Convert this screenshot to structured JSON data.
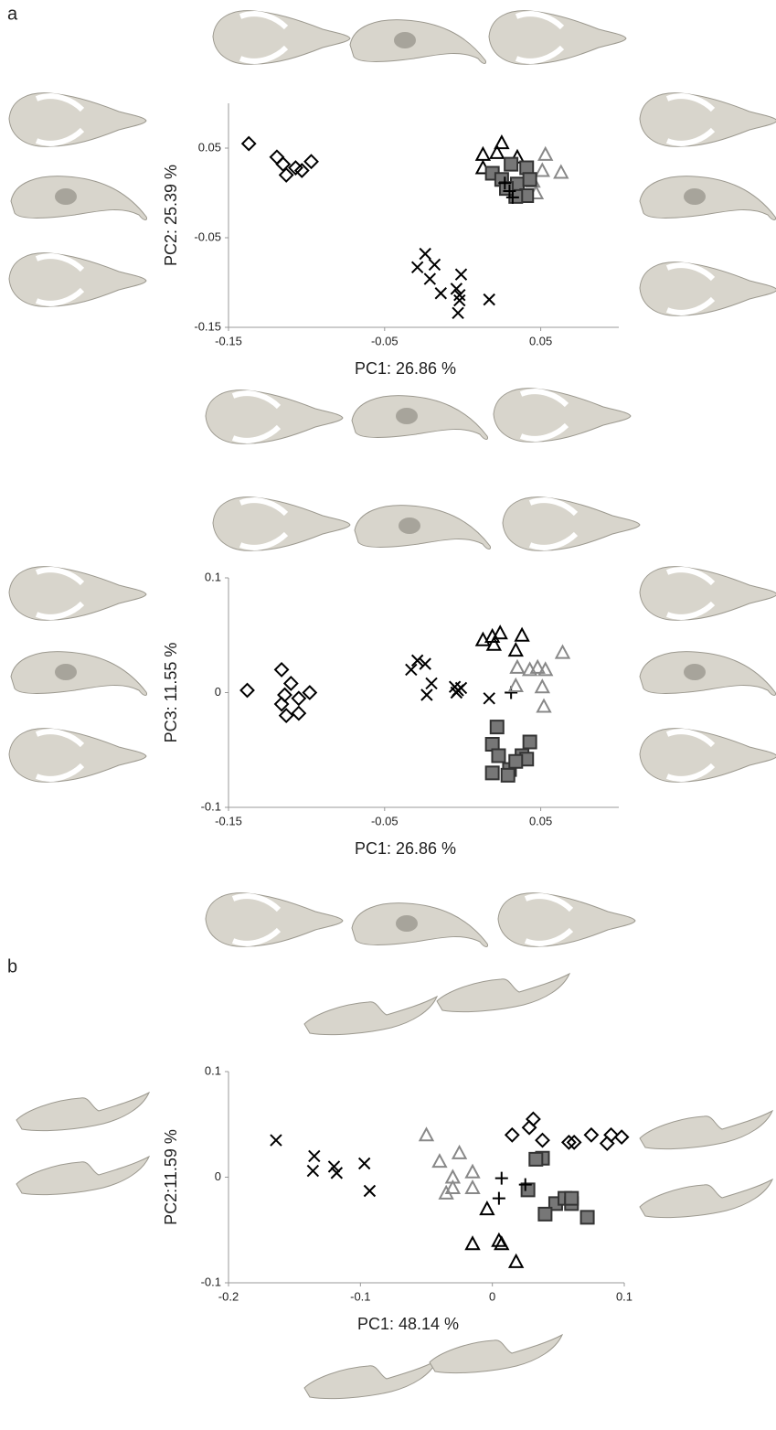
{
  "panel_labels": [
    "a",
    "b"
  ],
  "chart_data": [
    {
      "type": "scatter",
      "xlabel": "PC1: 26.86 %",
      "ylabel": "PC2: 25.39 %",
      "xlim": [
        -0.15,
        0.1
      ],
      "ylim": [
        -0.15,
        0.1
      ],
      "xticks": [
        -0.15,
        -0.05,
        0.05
      ],
      "yticks": [
        -0.15,
        -0.05,
        0.05
      ],
      "series": [
        {
          "marker": "diamond",
          "color": "#000000",
          "fill": "none",
          "x": [
            -0.137,
            -0.119,
            -0.115,
            -0.113,
            -0.107,
            -0.103,
            -0.097
          ],
          "values": [
            0.055,
            0.04,
            0.032,
            0.02,
            0.028,
            0.025,
            0.035
          ]
        },
        {
          "marker": "cross",
          "color": "#000000",
          "fill": "none",
          "x": [
            -0.024,
            -0.029,
            -0.021,
            -0.018,
            -0.014,
            -0.004,
            -0.002,
            -0.001,
            -0.003,
            -0.002,
            0.017
          ],
          "values": [
            -0.068,
            -0.083,
            -0.096,
            -0.08,
            -0.112,
            -0.107,
            -0.114,
            -0.091,
            -0.134,
            -0.12,
            -0.119
          ]
        },
        {
          "marker": "triangle",
          "color": "#000000",
          "fill": "none",
          "x": [
            0.013,
            0.013,
            0.025,
            0.035,
            0.022
          ],
          "values": [
            0.043,
            0.028,
            0.056,
            0.04,
            0.045
          ]
        },
        {
          "marker": "triangle",
          "color": "#888888",
          "fill": "none",
          "x": [
            0.053,
            0.051,
            0.063,
            0.047,
            0.045
          ],
          "values": [
            0.043,
            0.025,
            0.023,
            0,
            0.013
          ]
        },
        {
          "marker": "square",
          "color": "#333333",
          "fill": "#777777",
          "x": [
            0.019,
            0.031,
            0.035,
            0.041,
            0.043,
            0.041,
            0.034,
            0.025,
            0.028
          ],
          "values": [
            0.022,
            0.032,
            0.01,
            0.028,
            0.015,
            -0.003,
            -0.004,
            0.015,
            0.005
          ]
        },
        {
          "marker": "plus",
          "color": "#000000",
          "fill": "none",
          "x": [
            0.027,
            0.032,
            0.03
          ],
          "values": [
            0.011,
            -0.005,
            0.002
          ]
        }
      ]
    },
    {
      "type": "scatter",
      "xlabel": "PC1: 26.86 %",
      "ylabel": "PC3: 11.55 %",
      "xlim": [
        -0.15,
        0.1
      ],
      "ylim": [
        -0.1,
        0.1
      ],
      "xticks": [
        -0.15,
        -0.05,
        0.05
      ],
      "yticks": [
        -0.1,
        0,
        0.1
      ],
      "series": [
        {
          "marker": "diamond",
          "color": "#000000",
          "fill": "none",
          "x": [
            -0.138,
            -0.116,
            -0.114,
            -0.11,
            -0.105,
            -0.113,
            -0.105,
            -0.098,
            -0.116
          ],
          "values": [
            0.002,
            0.02,
            -0.002,
            0.008,
            -0.005,
            -0.02,
            -0.018,
            0,
            -0.01
          ]
        },
        {
          "marker": "cross",
          "color": "#000000",
          "fill": "none",
          "x": [
            -0.033,
            -0.029,
            -0.024,
            -0.02,
            -0.023,
            -0.005,
            -0.003,
            -0.001,
            -0.004,
            0.017
          ],
          "values": [
            0.02,
            0.028,
            0.025,
            0.008,
            -0.002,
            0.005,
            0.002,
            0.004,
            0,
            -0.005
          ]
        },
        {
          "marker": "plus",
          "color": "#000000",
          "fill": "none",
          "x": [
            0.031
          ],
          "values": [
            0
          ]
        },
        {
          "marker": "triangle",
          "color": "#000000",
          "fill": "none",
          "x": [
            0.013,
            0.019,
            0.024,
            0.02,
            0.038,
            0.034
          ],
          "values": [
            0.046,
            0.049,
            0.052,
            0.042,
            0.05,
            0.037
          ]
        },
        {
          "marker": "triangle",
          "color": "#888888",
          "fill": "none",
          "x": [
            0.035,
            0.034,
            0.043,
            0.048,
            0.053,
            0.052,
            0.064,
            0.051
          ],
          "values": [
            0.022,
            0.006,
            0.02,
            0.022,
            0.02,
            -0.012,
            0.035,
            0.005
          ]
        },
        {
          "marker": "square",
          "color": "#333333",
          "fill": "#777777",
          "x": [
            0.022,
            0.019,
            0.023,
            0.038,
            0.03,
            0.041,
            0.019,
            0.029,
            0.034,
            0.043
          ],
          "values": [
            -0.03,
            -0.045,
            -0.055,
            -0.055,
            -0.067,
            -0.058,
            -0.07,
            -0.072,
            -0.06,
            -0.043
          ]
        }
      ]
    },
    {
      "type": "scatter",
      "xlabel": "PC1: 48.14 %",
      "ylabel": "PC2:11.59 %",
      "xlim": [
        -0.2,
        0.1
      ],
      "ylim": [
        -0.1,
        0.1
      ],
      "xticks": [
        -0.2,
        -0.1,
        0,
        0.1
      ],
      "yticks": [
        -0.1,
        0,
        0.1
      ],
      "series": [
        {
          "marker": "cross",
          "color": "#000000",
          "fill": "none",
          "x": [
            -0.164,
            -0.135,
            -0.136,
            -0.12,
            -0.118,
            -0.097,
            -0.093
          ],
          "values": [
            0.035,
            0.02,
            0.006,
            0.01,
            0.004,
            0.013,
            -0.013
          ]
        },
        {
          "marker": "diamond",
          "color": "#000000",
          "fill": "none",
          "x": [
            0.015,
            0.028,
            0.031,
            0.038,
            0.058,
            0.062,
            0.075,
            0.087,
            0.09,
            0.098
          ],
          "values": [
            0.04,
            0.047,
            0.055,
            0.035,
            0.033,
            0.033,
            0.04,
            0.032,
            0.04,
            0.038
          ]
        },
        {
          "marker": "triangle",
          "color": "#888888",
          "fill": "none",
          "x": [
            -0.05,
            -0.04,
            -0.025,
            -0.03,
            -0.035,
            -0.03,
            -0.015,
            -0.015
          ],
          "values": [
            0.04,
            0.015,
            0.023,
            -0.01,
            -0.015,
            0,
            0.005,
            -0.01
          ]
        },
        {
          "marker": "triangle",
          "color": "#000000",
          "fill": "none",
          "x": [
            -0.004,
            -0.015,
            0.005,
            0.007,
            0.018
          ],
          "values": [
            -0.03,
            -0.063,
            -0.06,
            -0.063,
            -0.08
          ]
        },
        {
          "marker": "square",
          "color": "#333333",
          "fill": "#777777",
          "x": [
            0.038,
            0.033,
            0.027,
            0.048,
            0.04,
            0.055,
            0.06,
            0.06,
            0.072
          ],
          "values": [
            0.018,
            0.017,
            -0.012,
            -0.025,
            -0.035,
            -0.02,
            -0.025,
            -0.02,
            -0.038
          ]
        },
        {
          "marker": "plus",
          "color": "#000000",
          "fill": "none",
          "x": [
            0.007,
            0.005,
            0.025
          ],
          "values": [
            -0.001,
            -0.02,
            -0.007
          ]
        }
      ]
    }
  ]
}
